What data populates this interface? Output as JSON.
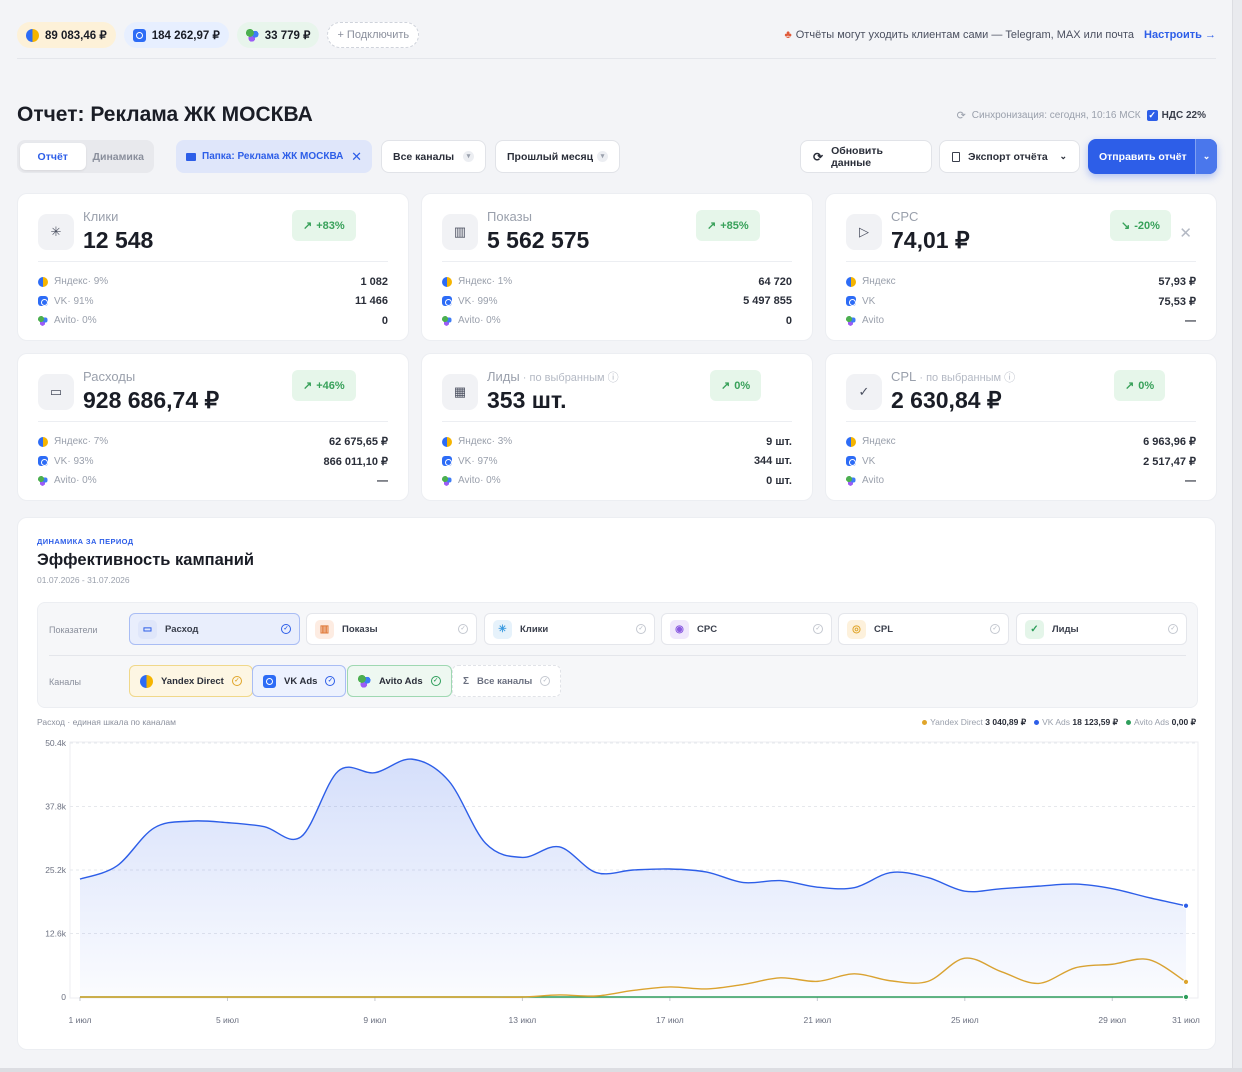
{
  "topbar": {
    "balances": [
      {
        "channel": "yandex",
        "amount": "89 083,46 ₽"
      },
      {
        "channel": "vk",
        "amount": "184 262,97 ₽"
      },
      {
        "channel": "avito",
        "amount": "33 779 ₽"
      }
    ],
    "connect_label": "+ Подключить",
    "note": "Отчёты могут уходить клиентам сами — Telegram, MAX или почта",
    "note_link": "Настроить →"
  },
  "header": {
    "title": "Отчет: Реклама ЖК МОСКВА",
    "sync": "Синхронизация: сегодня, 10:16 МСК",
    "nds": "НДС 22%"
  },
  "controls": {
    "tabs": [
      "Отчёт",
      "Динамика"
    ],
    "folder": "Папка: Реклама ЖК МОСКВА",
    "channels_select": "Все каналы",
    "period_select": "Прошлый месяц",
    "refresh": "Обновить данные",
    "export": "Экспорт отчёта",
    "send": "Отправить отчёт"
  },
  "cards": [
    {
      "label": "Клики",
      "sub": "",
      "value": "12 548",
      "delta": "+83%",
      "icon": "sparkle-icon",
      "rows": [
        {
          "name": "Яндекс",
          "share": " · 9%",
          "value": "1 082"
        },
        {
          "name": "VK",
          "share": " · 91%",
          "value": "11 466"
        },
        {
          "name": "Avito",
          "share": " · 0%",
          "value": "0"
        }
      ]
    },
    {
      "label": "Показы",
      "sub": "",
      "value": "5 562 575",
      "delta": "+85%",
      "icon": "bar-chart-icon",
      "rows": [
        {
          "name": "Яндекс",
          "share": " · 1%",
          "value": "64 720"
        },
        {
          "name": "VK",
          "share": " · 99%",
          "value": "5 497 855"
        },
        {
          "name": "Avito",
          "share": " · 0%",
          "value": "0"
        }
      ]
    },
    {
      "label": "CPC",
      "sub": "",
      "value": "74,01 ₽",
      "delta": "-20%",
      "icon": "play-circle-icon",
      "rows": [
        {
          "name": "Яндекс",
          "share": "",
          "value": "57,93 ₽"
        },
        {
          "name": "VK",
          "share": "",
          "value": "75,53 ₽"
        },
        {
          "name": "Avito",
          "share": "",
          "value": "—"
        }
      ]
    },
    {
      "label": "Расходы",
      "sub": "",
      "value": "928 686,74 ₽",
      "delta": "+46%",
      "icon": "wallet-icon",
      "rows": [
        {
          "name": "Яндекс",
          "share": " · 7%",
          "value": "62 675,65 ₽"
        },
        {
          "name": "VK",
          "share": " · 93%",
          "value": "866 011,10 ₽"
        },
        {
          "name": "Avito",
          "share": " · 0%",
          "value": "—"
        }
      ]
    },
    {
      "label": "Лиды",
      "sub": " · по выбранным",
      "value": "353 шт.",
      "delta": "0%",
      "icon": "calendar-icon",
      "rows": [
        {
          "name": "Яндекс",
          "share": " · 3%",
          "value": "9 шт."
        },
        {
          "name": "VK",
          "share": " · 97%",
          "value": "344 шт."
        },
        {
          "name": "Avito",
          "share": " · 0%",
          "value": "0 шт."
        }
      ]
    },
    {
      "label": "CPL",
      "sub": " · по выбранным",
      "value": "2 630,84 ₽",
      "delta": "0%",
      "icon": "check-circle-icon",
      "rows": [
        {
          "name": "Яндекс",
          "share": "",
          "value": "6 963,96 ₽"
        },
        {
          "name": "VK",
          "share": "",
          "value": "2 517,47 ₽"
        },
        {
          "name": "Avito",
          "share": "",
          "value": "—"
        }
      ]
    }
  ],
  "panel": {
    "kicker": "ДИНАМИКА ЗА ПЕРИОД",
    "title": "Эффективность кампаний",
    "dates": "01.07.2026 - 31.07.2026",
    "metrics_label": "Показатели",
    "metrics": [
      "Расход",
      "Показы",
      "Клики",
      "CPC",
      "CPL",
      "Лиды"
    ],
    "channels_label": "Каналы",
    "channels": [
      "Yandex Direct",
      "VK Ads",
      "Avito Ads",
      "Все каналы"
    ],
    "chart_caption": "Расход · единая шкала по каналам",
    "legend": [
      {
        "name": "Yandex Direct",
        "value": "3 040,89 ₽",
        "color": "#e0a52a"
      },
      {
        "name": "VK Ads",
        "value": "18 123,59 ₽",
        "color": "#2d5ee8"
      },
      {
        "name": "Avito Ads",
        "value": "0,00 ₽",
        "color": "#2e9e5b"
      }
    ]
  },
  "chart_data": {
    "type": "area",
    "x": [
      "1 июл",
      "2 июл",
      "3 июл",
      "4 июл",
      "5 июл",
      "6 июл",
      "7 июл",
      "8 июл",
      "9 июл",
      "10 июл",
      "11 июл",
      "12 июл",
      "13 июл",
      "14 июл",
      "15 июл",
      "16 июл",
      "17 июл",
      "18 июл",
      "19 июл",
      "20 июл",
      "21 июл",
      "22 июл",
      "23 июл",
      "24 июл",
      "25 июл",
      "26 июл",
      "27 июл",
      "28 июл",
      "29 июл",
      "30 июл",
      "31 июл"
    ],
    "xticks": [
      "1 июл",
      "5 июл",
      "9 июл",
      "13 июл",
      "17 июл",
      "21 июл",
      "25 июл",
      "29 июл",
      "31 июл"
    ],
    "yticks": [
      "50.4k",
      "37.8k",
      "25.2k",
      "12.6k",
      "0"
    ],
    "ylim": [
      0,
      50400
    ],
    "grid": true,
    "series": [
      {
        "name": "VK Ads",
        "color": "#2d5ee8",
        "values": [
          23400,
          26000,
          33500,
          34900,
          34600,
          33800,
          31800,
          44800,
          44500,
          47200,
          42900,
          30500,
          27700,
          29800,
          24700,
          25200,
          25400,
          24800,
          22700,
          23100,
          21800,
          21700,
          24700,
          23700,
          21000,
          21500,
          22000,
          22400,
          21500,
          19700,
          18100
        ]
      },
      {
        "name": "Yandex Direct",
        "color": "#e0a52a",
        "values": [
          0,
          0,
          0,
          0,
          0,
          0,
          0,
          0,
          0,
          0,
          0,
          0,
          0,
          400,
          200,
          1300,
          2000,
          1600,
          2500,
          3800,
          3100,
          4600,
          3200,
          3100,
          7700,
          5000,
          2700,
          5800,
          6500,
          7400,
          3000
        ]
      },
      {
        "name": "Avito Ads",
        "color": "#2e9e5b",
        "values": [
          0,
          0,
          0,
          0,
          0,
          0,
          0,
          0,
          0,
          0,
          0,
          0,
          0,
          0,
          0,
          0,
          0,
          0,
          0,
          0,
          0,
          0,
          0,
          0,
          0,
          0,
          0,
          0,
          0,
          0,
          0
        ]
      }
    ]
  }
}
